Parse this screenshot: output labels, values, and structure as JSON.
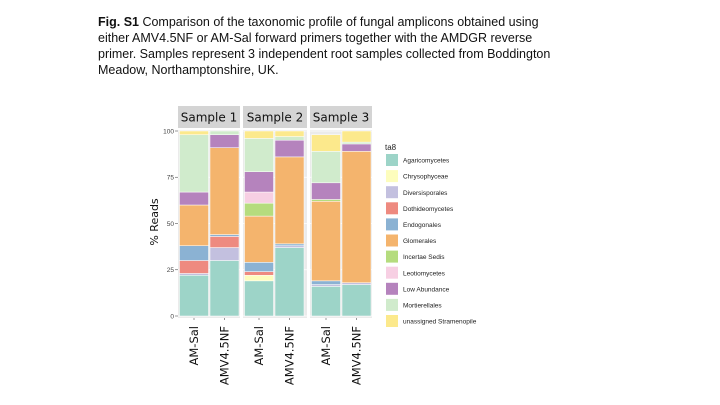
{
  "caption": {
    "label": "Fig. S1",
    "text": " Comparison of the taxonomic profile of fungal amplicons obtained using either AMV4.5NF or AM-Sal forward primers together with the AMDGR reverse primer. Samples represent 3 independent root samples collected from Boddington Meadow, Northamptonshire, UK."
  },
  "chart_data": {
    "type": "bar",
    "stacked": true,
    "facets": [
      "Sample 1",
      "Sample 2",
      "Sample 3"
    ],
    "categories": [
      "AM-Sal",
      "AMV4.5NF"
    ],
    "ylabel": "% Reads",
    "ylim": [
      0,
      100
    ],
    "yticks": [
      0,
      25,
      50,
      75,
      100
    ],
    "legend_title": "ta8",
    "legend_position": "right",
    "series": [
      {
        "name": "Agaricomycetes",
        "color": "#9dd4c8",
        "values": [
          [
            22,
            30
          ],
          [
            19,
            37
          ],
          [
            16,
            17
          ]
        ]
      },
      {
        "name": "Chrysophyceae",
        "color": "#fdfdbd",
        "values": [
          [
            0,
            0
          ],
          [
            3,
            0
          ],
          [
            0,
            0
          ]
        ]
      },
      {
        "name": "Diversisporales",
        "color": "#c3c0df",
        "values": [
          [
            1,
            7
          ],
          [
            0,
            1
          ],
          [
            1,
            1
          ]
        ]
      },
      {
        "name": "Dothideomycetes",
        "color": "#ee8a80",
        "values": [
          [
            7,
            6
          ],
          [
            2,
            0
          ],
          [
            0,
            0
          ]
        ]
      },
      {
        "name": "Endogonales",
        "color": "#8bb2d3",
        "values": [
          [
            8,
            1
          ],
          [
            5,
            1
          ],
          [
            2,
            0
          ]
        ]
      },
      {
        "name": "Glomerales",
        "color": "#f4b46d",
        "values": [
          [
            22,
            47
          ],
          [
            25,
            47
          ],
          [
            43,
            71
          ]
        ]
      },
      {
        "name": "Incertae Sedis",
        "color": "#b5dc7e",
        "values": [
          [
            0,
            0
          ],
          [
            7,
            0
          ],
          [
            1,
            0
          ]
        ]
      },
      {
        "name": "Leotiomycetes",
        "color": "#f7cfe3",
        "values": [
          [
            0,
            0
          ],
          [
            6,
            0
          ],
          [
            0,
            0
          ]
        ]
      },
      {
        "name": "Low Abundance",
        "color": "#b583bd",
        "values": [
          [
            7,
            7
          ],
          [
            11,
            9
          ],
          [
            9,
            4
          ]
        ]
      },
      {
        "name": "Mortierellales",
        "color": "#d0ebcc",
        "values": [
          [
            31,
            2
          ],
          [
            18,
            2
          ],
          [
            17,
            1
          ]
        ]
      },
      {
        "name": "unassigned Stramenopile",
        "color": "#fce98c",
        "values": [
          [
            2,
            0
          ],
          [
            4,
            3
          ],
          [
            9,
            6
          ]
        ]
      }
    ]
  }
}
